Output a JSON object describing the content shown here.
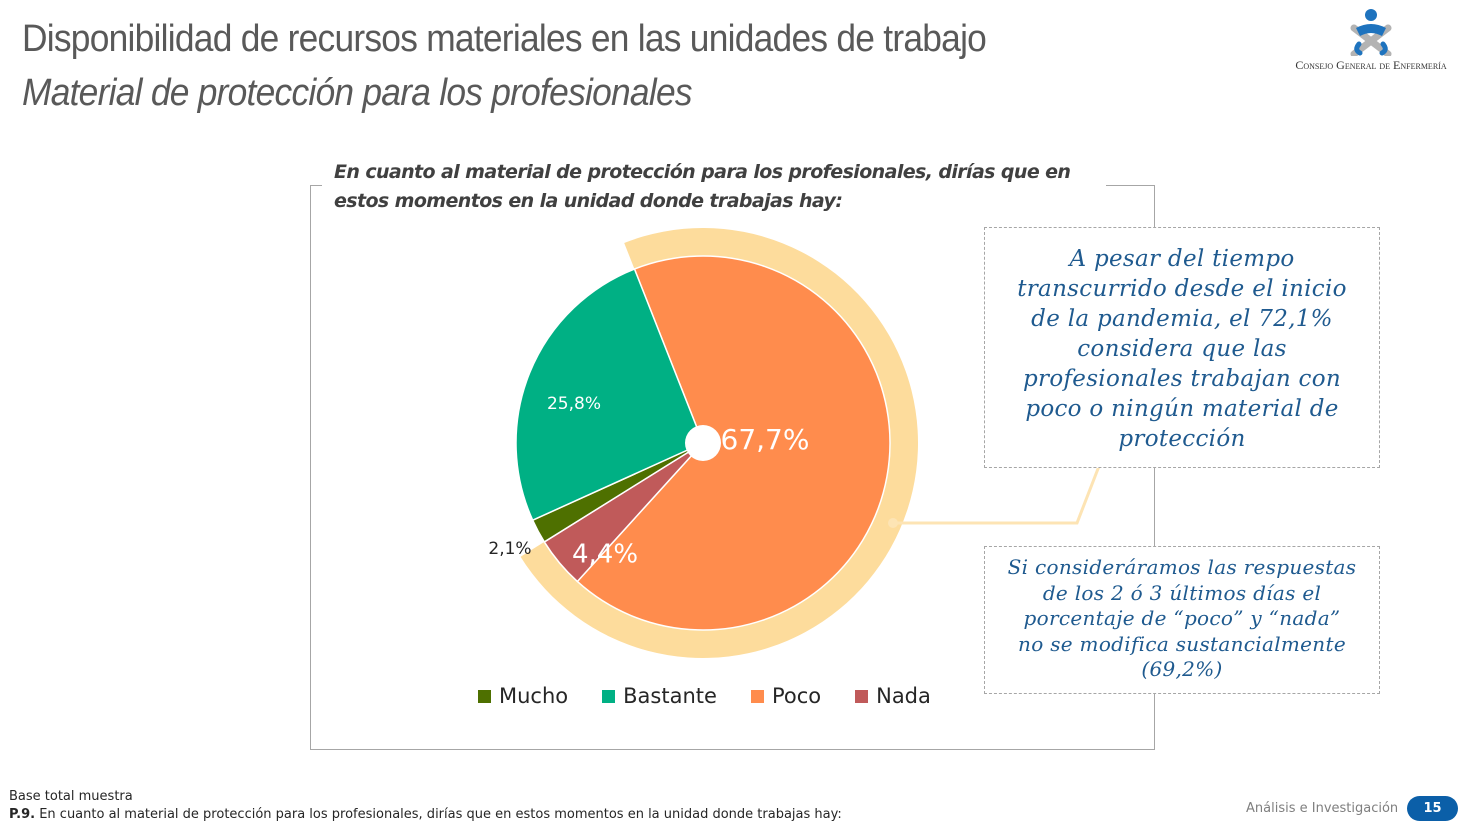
{
  "header": {
    "title": "Disponibilidad de recursos materiales en las unidades de trabajo",
    "subtitle": "Material de protección para los profesionales"
  },
  "logo": {
    "icon": "nurse-figure-icon",
    "text": "Consejo General de Enfermería",
    "colors": {
      "figure": "#1e73be",
      "cross": "#b3b3b3"
    }
  },
  "chart_data": {
    "type": "pie",
    "title": "En cuanto al material de protección para los profesionales, dirías que en estos momentos en la unidad donde trabajas hay:",
    "categories": [
      "Mucho",
      "Bastante",
      "Poco",
      "Nada"
    ],
    "values": [
      2.1,
      25.8,
      67.7,
      4.4
    ],
    "labels": [
      "2,1%",
      "25,8%",
      "67,7%",
      "4,4%"
    ],
    "colors": [
      "#4e7000",
      "#00b084",
      "#ff8c4d",
      "#c05a5a"
    ],
    "draw_order": [
      "Poco",
      "Nada",
      "Mucho",
      "Bastante"
    ],
    "highlight": {
      "categories": [
        "Poco",
        "Nada"
      ],
      "value": 72.1,
      "color": "#fddc9c"
    },
    "legend": "bottom",
    "units": "%"
  },
  "callouts": {
    "main": [
      "A pesar del tiempo",
      "transcurrido desde el inicio",
      "de la pandemia, el 72,1%",
      "considera que las",
      "profesionales trabajan con",
      "poco o ningún material de",
      "protección"
    ],
    "secondary": [
      "Si consideráramos las respuestas",
      "de los 2 ó 3 últimos días el",
      "porcentaje de “poco” y “nada”",
      "no se modifica sustancialmente",
      "(69,2%)"
    ]
  },
  "footer": {
    "base": "Base total muestra",
    "question_id": "P.9.",
    "question": " En cuanto al material de protección para los profesionales, dirías que en estos momentos en la unidad donde trabajas hay:",
    "brand": "Análisis e Investigación",
    "page_number": "15"
  }
}
